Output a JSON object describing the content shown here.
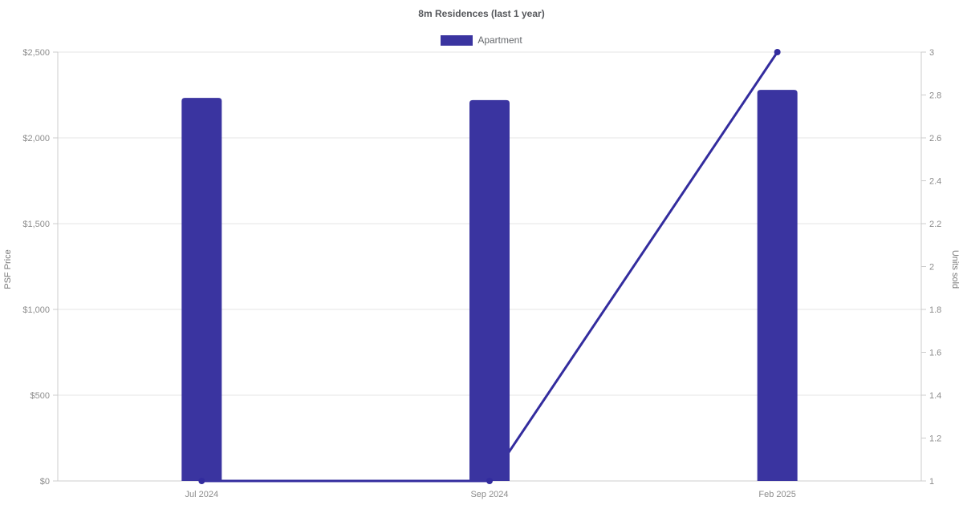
{
  "title": "8m Residences (last 1 year)",
  "legend": {
    "items": [
      {
        "label": "Apartment",
        "color": "#3a34a0"
      }
    ]
  },
  "chart_data": {
    "type": "bar",
    "subtype": "dual-axis bar + line combo",
    "title": "8m Residences (last 1 year)",
    "categories": [
      "Jul 2024",
      "Sep 2024",
      "Feb 2025"
    ],
    "series": [
      {
        "name": "Apartment",
        "type": "bar",
        "axis": "left",
        "color": "#3a34a0",
        "values": [
          2233,
          2220,
          2280
        ]
      },
      {
        "name": "Units sold",
        "type": "line",
        "axis": "right",
        "color": "#332c9e",
        "marker": "circle",
        "values": [
          1,
          1,
          3
        ]
      }
    ],
    "left_axis": {
      "label": "PSF Price",
      "min": 0,
      "max": 2500,
      "tick_values": [
        0,
        500,
        1000,
        1500,
        2000,
        2500
      ],
      "tick_labels": [
        "$0",
        "$500",
        "$1,000",
        "$1,500",
        "$2,000",
        "$2,500"
      ]
    },
    "right_axis": {
      "label": "Units sold",
      "min": 1,
      "max": 3,
      "tick_values": [
        1,
        1.2,
        1.4,
        1.6,
        1.8,
        2,
        2.2,
        2.4,
        2.6,
        2.8,
        3
      ],
      "tick_labels": [
        "1",
        "1.2",
        "1.4",
        "1.6",
        "1.8",
        "2",
        "2.2",
        "2.4",
        "2.6",
        "2.8",
        "3"
      ]
    },
    "grid": true,
    "legend_position": "top"
  },
  "colors": {
    "background": "#ffffff",
    "grid": "#e5e5e5",
    "axis_line": "#cccccc",
    "tick_text": "#8c8c8c",
    "axis_title_text": "#7a7a7a"
  }
}
